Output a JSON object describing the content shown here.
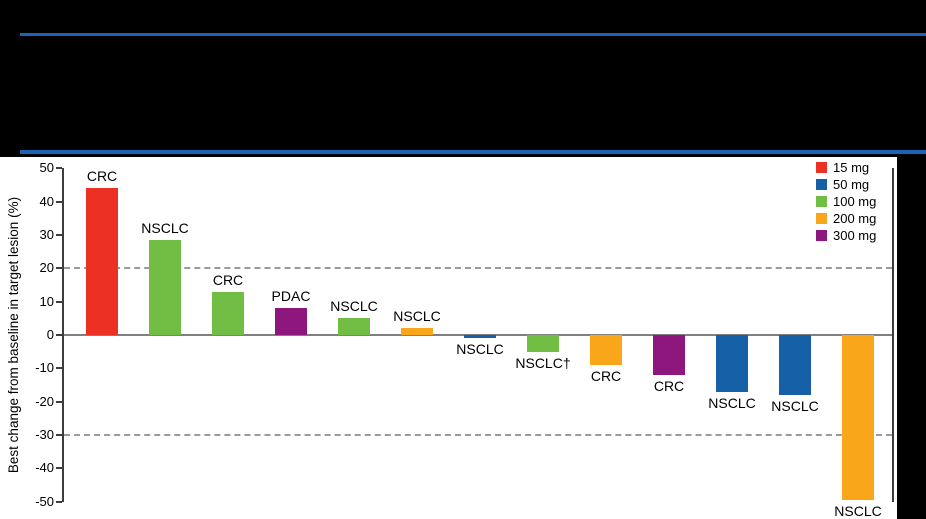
{
  "theme": {
    "page_background": "#000000",
    "panel_background": "#ffffff",
    "header_rule_color": "#1C63B6",
    "axis_color": "#3d3d3d",
    "zero_line_color": "#808080",
    "dashed_line_color": "#9a9a9a",
    "text_color": "#000000"
  },
  "header": {
    "note": ""
  },
  "chart_data": {
    "type": "bar",
    "title": "",
    "xlabel": "",
    "ylabel": "Best change from baseline in target lesion (%)",
    "ylim": [
      -50,
      50
    ],
    "yticks": [
      50,
      40,
      30,
      20,
      10,
      0,
      -10,
      -20,
      -30,
      -40,
      -50
    ],
    "reference_lines": [
      20,
      -30
    ],
    "grid": "dashed reference lines at +20 and -30 only",
    "legend_position": "top-right inside plot",
    "legend": [
      {
        "label": "15 mg",
        "color": "#ED3024"
      },
      {
        "label": "50 mg",
        "color": "#1660A8"
      },
      {
        "label": "100 mg",
        "color": "#72BE44"
      },
      {
        "label": "200 mg",
        "color": "#FAA61A"
      },
      {
        "label": "300 mg",
        "color": "#8E177E"
      }
    ],
    "bars": [
      {
        "label": "CRC",
        "dose": "15 mg",
        "value": 44
      },
      {
        "label": "NSCLC",
        "dose": "100 mg",
        "value": 28.5
      },
      {
        "label": "CRC",
        "dose": "100 mg",
        "value": 13
      },
      {
        "label": "PDAC",
        "dose": "300 mg",
        "value": 8
      },
      {
        "label": "NSCLC",
        "dose": "100 mg",
        "value": 5
      },
      {
        "label": "NSCLC",
        "dose": "200 mg",
        "value": 2
      },
      {
        "label": "NSCLC",
        "dose": "50 mg",
        "value": -1
      },
      {
        "label": "NSCLC†",
        "dose": "100 mg",
        "value": -5
      },
      {
        "label": "CRC",
        "dose": "200 mg",
        "value": -9
      },
      {
        "label": "CRC",
        "dose": "300 mg",
        "value": -12
      },
      {
        "label": "NSCLC",
        "dose": "50 mg",
        "value": -17
      },
      {
        "label": "NSCLC",
        "dose": "50 mg",
        "value": -18
      },
      {
        "label": "NSCLC",
        "dose": "200 mg",
        "value": -49.5
      }
    ]
  }
}
